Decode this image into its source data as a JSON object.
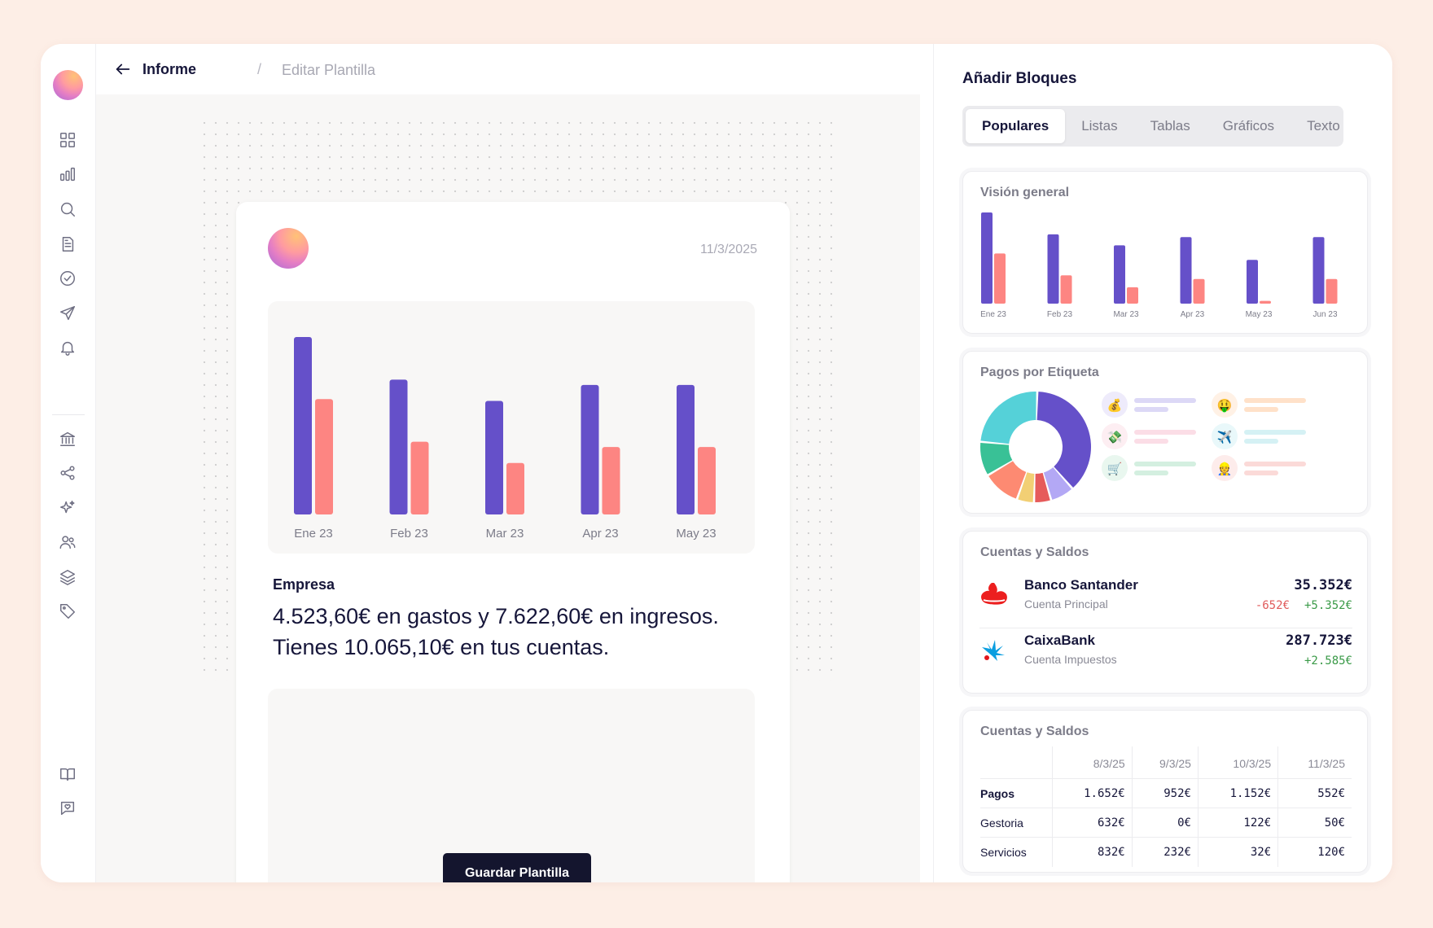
{
  "header": {
    "crumb_main": "Informe",
    "crumb_sep": "/",
    "crumb_sub": "Editar Plantilla"
  },
  "sidebar": {
    "icons": [
      "dashboard-icon",
      "bar-chart-icon",
      "search-icon",
      "document-icon",
      "check-circle-icon",
      "send-icon",
      "bell-icon",
      "bank-icon",
      "share-icon",
      "sparkles-icon",
      "users-icon",
      "layers-icon",
      "tag-icon",
      "book-icon",
      "support-heart-icon"
    ]
  },
  "report": {
    "date": "11/3/2025",
    "heading": "Empresa",
    "summary": "4.523,60€ en gastos y 7.622,60€ en ingresos. Tienes 10.065,10€ en tus cuentas.",
    "save_label": "Guardar Plantilla"
  },
  "colors": {
    "purple": "#6550c9",
    "coral": "#fd8582",
    "primary_button": "#14152e"
  },
  "panel": {
    "title": "Añadir Bloques",
    "tabs": [
      {
        "label": "Populares",
        "active": true
      },
      {
        "label": "Listas",
        "active": false
      },
      {
        "label": "Tablas",
        "active": false
      },
      {
        "label": "Gráficos",
        "active": false
      },
      {
        "label": "Texto",
        "active": false
      }
    ],
    "overview_title": "Visión general",
    "tags_title": "Pagos por Etiqueta",
    "accounts_title": "Cuentas y Saldos",
    "accounts": [
      {
        "name": "Banco Santander",
        "sub": "Cuenta Principal",
        "total": "35.352€",
        "neg": "-652€",
        "pos": "+5.352€"
      },
      {
        "name": "CaixaBank",
        "sub": "Cuenta Impuestos",
        "total": "287.723€",
        "neg": "",
        "pos": "+2.585€"
      }
    ],
    "table_title": "Cuentas y Saldos",
    "table_headers": [
      "",
      "8/3/25",
      "9/3/25",
      "10/3/25",
      "11/3/25"
    ],
    "table_rows": [
      [
        "Pagos",
        "1.652€",
        "952€",
        "1.152€",
        "552€"
      ],
      [
        "Gestoria",
        "632€",
        "0€",
        "122€",
        "50€"
      ],
      [
        "Servicios",
        "832€",
        "232€",
        "32€",
        "120€"
      ]
    ]
  },
  "chart_data": [
    {
      "type": "bar",
      "categories": [
        "Ene 23",
        "Feb 23",
        "Mar 23",
        "Apr 23",
        "May 23"
      ],
      "series": [
        {
          "values": [
            100,
            76,
            64,
            73,
            73
          ]
        },
        {
          "values": [
            65,
            41,
            29,
            38,
            38
          ]
        }
      ],
      "ylim": [
        0,
        100
      ],
      "grid": false
    },
    {
      "type": "bar",
      "categories": [
        "Ene 23",
        "Feb 23",
        "Mar 23",
        "Apr 23",
        "May 23",
        "Jun 23"
      ],
      "series": [
        {
          "values": [
            100,
            76,
            64,
            73,
            48,
            73
          ]
        },
        {
          "values": [
            55,
            31,
            18,
            27,
            3,
            27
          ]
        }
      ],
      "ylim": [
        0,
        100
      ],
      "grid": false
    },
    {
      "type": "pie",
      "values": [
        38,
        7,
        5,
        5,
        11,
        10,
        24
      ],
      "slice_colors": [
        "#6550c9",
        "#b3a8f5",
        "#e65b5b",
        "#f2cf74",
        "#fd8a72",
        "#39c196",
        "#55d1d8"
      ]
    }
  ],
  "tag_legend": [
    {
      "icon": "money-bag-icon",
      "glyph": "💰",
      "bg": "#eeebfb",
      "bar": "#dcd8f6"
    },
    {
      "icon": "money-face-icon",
      "glyph": "🤑",
      "bg": "#fff1e5",
      "bar": "#ffe1c9"
    },
    {
      "icon": "flying-money-icon",
      "glyph": "💸",
      "bg": "#fdeef2",
      "bar": "#fbdde6"
    },
    {
      "icon": "airplane-icon",
      "glyph": "✈️",
      "bg": "#e9f8fa",
      "bar": "#d5f1f4"
    },
    {
      "icon": "cart-icon",
      "glyph": "🛒",
      "bg": "#e9f7ef",
      "bar": "#d4efe0"
    },
    {
      "icon": "worker-icon",
      "glyph": "👷",
      "bg": "#fdeceb",
      "bar": "#fbdad8"
    }
  ]
}
